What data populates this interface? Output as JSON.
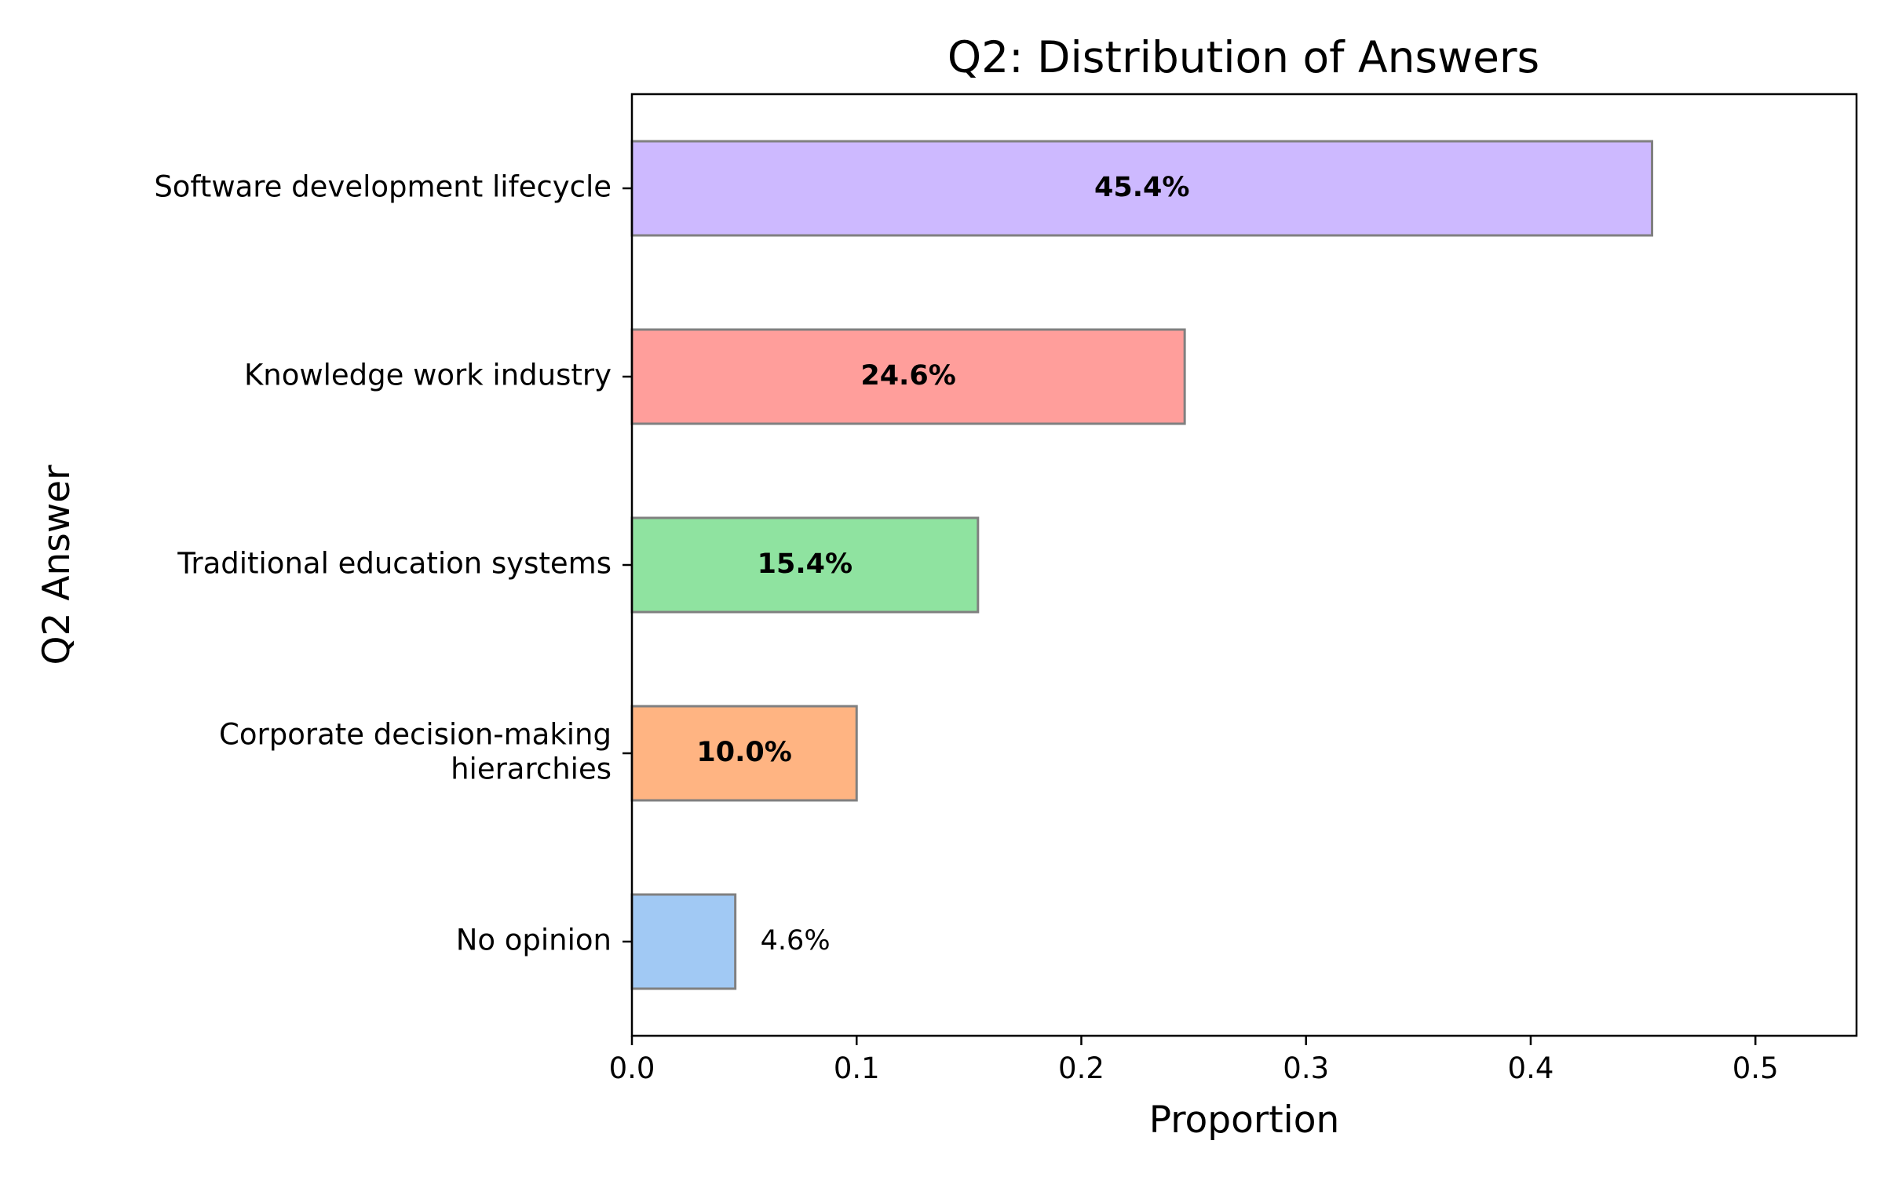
{
  "chart_data": {
    "type": "bar",
    "orientation": "horizontal",
    "title": "Q2: Distribution of Answers",
    "xlabel": "Proportion",
    "ylabel": "Q2 Answer",
    "xlim": [
      0,
      0.545
    ],
    "xticks": [
      0.0,
      0.1,
      0.2,
      0.3,
      0.4,
      0.5
    ],
    "xtick_labels": [
      "0.0",
      "0.1",
      "0.2",
      "0.3",
      "0.4",
      "0.5"
    ],
    "grid": false,
    "categories": [
      "Software development lifecycle",
      "Knowledge work industry",
      "Traditional education systems",
      "Corporate decision-making hierarchies",
      "No opinion"
    ],
    "category_lines": [
      [
        "Software development lifecycle"
      ],
      [
        "Knowledge work industry"
      ],
      [
        "Traditional education systems"
      ],
      [
        "Corporate decision-making",
        "hierarchies"
      ],
      [
        "No opinion"
      ]
    ],
    "values": [
      0.454,
      0.246,
      0.154,
      0.1,
      0.046
    ],
    "data_labels": [
      "45.4%",
      "24.6%",
      "15.4%",
      "10.0%",
      "4.6%"
    ],
    "label_placement": [
      "inside",
      "inside",
      "inside",
      "inside",
      "outside"
    ],
    "colors": [
      "#cdb9ff",
      "#ff9e9b",
      "#8fe3a0",
      "#ffb482",
      "#a1c9f4"
    ],
    "edge_color": "#808080"
  }
}
